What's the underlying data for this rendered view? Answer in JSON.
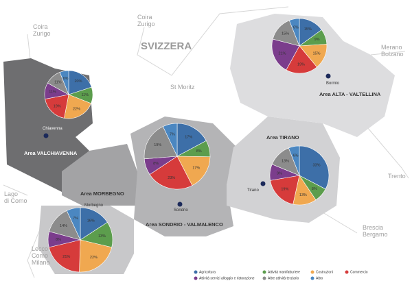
{
  "places": [
    [
      "Coira",
      "Zurigo"
    ],
    [
      "Coira",
      "Zurigo"
    ],
    [
      "SVIZZERA"
    ],
    [
      "St Moritz"
    ],
    [
      "Merano",
      "Bolzano"
    ],
    [
      "Lago",
      "di Como"
    ],
    [
      "Lecco",
      "Como",
      "Milano"
    ],
    [
      "Trento"
    ],
    [
      "Brescia",
      "Bergamo"
    ]
  ],
  "areas": [
    {
      "name": "Area VALCHIAVENNA",
      "town": "Chiavenna",
      "values": [
        20,
        11,
        22,
        19,
        11,
        11,
        6
      ],
      "value_labels": [
        "20%",
        "11%",
        "22%",
        "19%",
        "11%",
        "11%",
        "6%"
      ]
    },
    {
      "name": "Area MORBEGNO",
      "town": "Morbegno",
      "values": [
        16,
        13,
        22,
        21,
        8,
        14,
        7
      ],
      "value_labels": [
        "16%",
        "13%",
        "22%",
        "21%",
        "8%",
        "14%",
        "7%"
      ]
    },
    {
      "name": "Area SONDRIO - VALMALENCO",
      "town": "Sondrio",
      "values": [
        17,
        8,
        17,
        23,
        8,
        19,
        7
      ],
      "value_labels": [
        "17%",
        "8%",
        "17%",
        "23%",
        "8%",
        "19%",
        "7%"
      ]
    },
    {
      "name": "Area TIRANO",
      "town": "Tirano",
      "values": [
        33,
        8,
        13,
        19,
        9,
        13,
        6
      ],
      "value_labels": [
        "33%",
        "8%",
        "13%",
        "19%",
        "9%",
        "13%",
        "6%"
      ]
    },
    {
      "name": "Area ALTA - VALTELLINA",
      "town": "Bormio",
      "values": [
        15,
        9,
        15,
        19,
        21,
        15,
        6
      ],
      "value_labels": [
        "15%",
        "9%",
        "15%",
        "19%",
        "21%",
        "15%",
        "6%"
      ]
    }
  ],
  "legend": [
    {
      "name": "Agricoltura",
      "color": "#3d6fa8"
    },
    {
      "name": "Attività manifatturiere",
      "color": "#5c9d4d"
    },
    {
      "name": "Costruzioni",
      "color": "#f0a850"
    },
    {
      "name": "Commercio",
      "color": "#d63b3b"
    },
    {
      "name": "Attività servizi alloggio e ristorazione",
      "color": "#7b3d8c"
    },
    {
      "name": "Altre attività terziario",
      "color": "#8c8c8c"
    },
    {
      "name": "Altro",
      "color": "#4b87c1"
    }
  ]
}
